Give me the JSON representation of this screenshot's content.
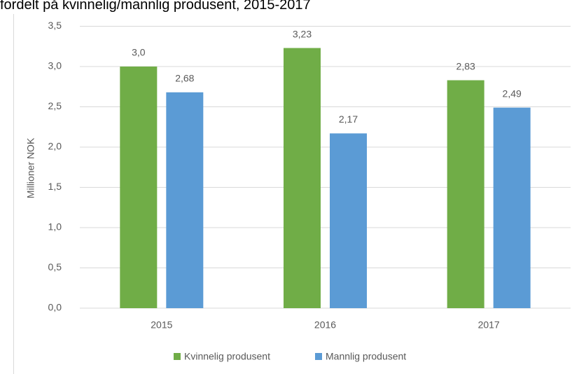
{
  "chart_data": {
    "type": "bar",
    "title": "fordelt på kvinnelig/mannlig produsent, 2015-2017",
    "y_label": "Millioner NOK",
    "categories": [
      "2015",
      "2016",
      "2017"
    ],
    "series": [
      {
        "name": "Kvinnelig produsent",
        "color": "#70ad47",
        "values": [
          3.0,
          3.23,
          2.83
        ],
        "value_labels": [
          "3,0",
          "3,23",
          "2,83"
        ]
      },
      {
        "name": "Mannlig produsent",
        "color": "#5b9bd5",
        "values": [
          2.68,
          2.17,
          2.49
        ],
        "value_labels": [
          "2,68",
          "2,17",
          "2,49"
        ]
      }
    ],
    "ylim": [
      0,
      3.5
    ],
    "yticks": [
      {
        "value": 0,
        "label": "0,0"
      },
      {
        "value": 0.5,
        "label": "0,5"
      },
      {
        "value": 1,
        "label": "1,0"
      },
      {
        "value": 1.5,
        "label": "1,5"
      },
      {
        "value": 2,
        "label": "2,0"
      },
      {
        "value": 2.5,
        "label": "2,5"
      },
      {
        "value": 3,
        "label": "3,0"
      },
      {
        "value": 3.5,
        "label": "3,5"
      }
    ],
    "grid": true,
    "legend": "bottom"
  }
}
